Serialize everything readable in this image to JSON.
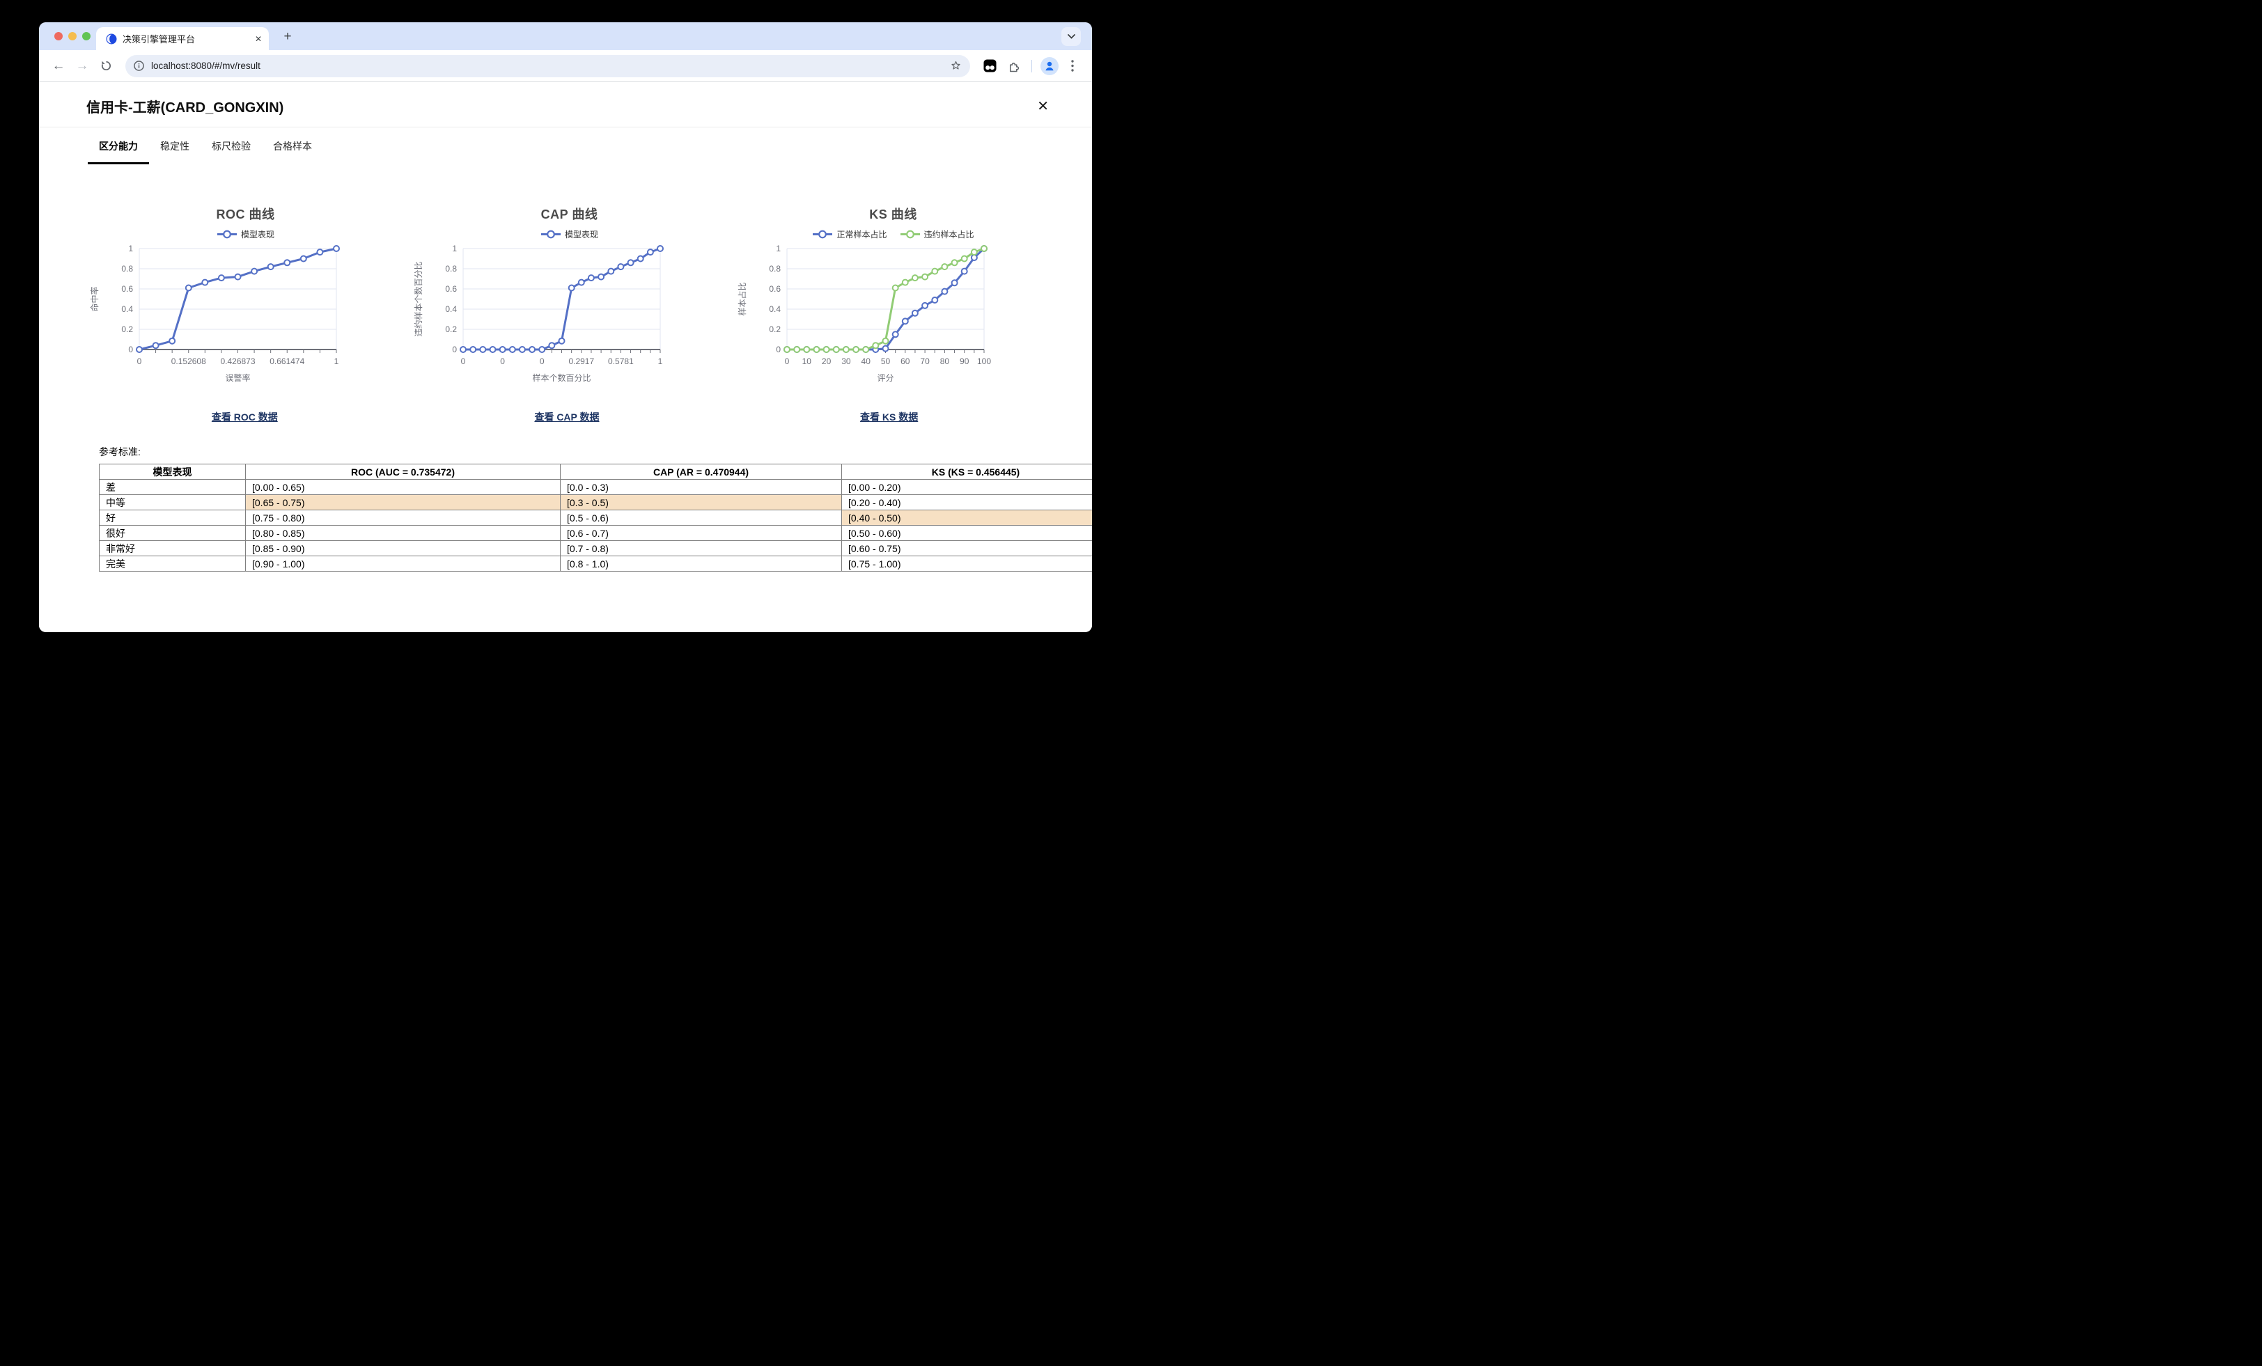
{
  "browser": {
    "tab_title": "决策引擎管理平台",
    "url": "localhost:8080/#/mv/result",
    "glyphs": {
      "tab_close": "✕",
      "new_tab": "+",
      "page_close": "✕"
    }
  },
  "page": {
    "title": "信用卡-工薪(CARD_GONGXIN)",
    "tabs": [
      {
        "label": "区分能力",
        "active": true
      },
      {
        "label": "稳定性",
        "active": false
      },
      {
        "label": "标尺检验",
        "active": false
      },
      {
        "label": "合格样本",
        "active": false
      }
    ],
    "links": [
      {
        "label": "查看 ROC 数据"
      },
      {
        "label": "查看 CAP 数据"
      },
      {
        "label": "查看 KS 数据"
      }
    ],
    "reference_label": "参考标准:"
  },
  "chart_data": [
    {
      "type": "line",
      "title": "ROC 曲线",
      "xlabel": "误警率",
      "ylabel": "命中率",
      "ylim": [
        0,
        1
      ],
      "y_ticks": [
        "0",
        "0.2",
        "0.4",
        "0.6",
        "0.8",
        "1"
      ],
      "grid": true,
      "legend_position": "top",
      "categories": [
        "0",
        "",
        "",
        "0.152608",
        "",
        "",
        "0.426873",
        "",
        "",
        "0.661474",
        "",
        "",
        "1"
      ],
      "series": [
        {
          "name": "模型表现",
          "color": "#5470C6",
          "values": [
            0,
            0.04,
            0.085,
            0.61,
            0.665,
            0.71,
            0.72,
            0.775,
            0.82,
            0.86,
            0.9,
            0.965,
            1
          ]
        }
      ]
    },
    {
      "type": "line",
      "title": "CAP 曲线",
      "xlabel": "样本个数百分比",
      "ylabel": "违约样本个数百分比",
      "ylim": [
        0,
        1
      ],
      "y_ticks": [
        "0",
        "0.2",
        "0.4",
        "0.6",
        "0.8",
        "1"
      ],
      "grid": true,
      "legend_position": "top",
      "categories": [
        "0",
        "",
        "",
        "",
        "0",
        "",
        "",
        "",
        "0",
        "",
        "",
        "",
        "0.2917",
        "",
        "",
        "",
        "0.5781",
        "",
        "",
        "",
        "1"
      ],
      "series": [
        {
          "name": "模型表现",
          "color": "#5470C6",
          "values": [
            0,
            0,
            0,
            0,
            0,
            0,
            0,
            0,
            0,
            0.04,
            0.085,
            0.61,
            0.665,
            0.71,
            0.72,
            0.775,
            0.82,
            0.86,
            0.9,
            0.965,
            1
          ]
        }
      ]
    },
    {
      "type": "line",
      "title": "KS 曲线",
      "xlabel": "评分",
      "ylabel": "样本占比",
      "ylim": [
        0,
        1
      ],
      "y_ticks": [
        "0",
        "0.2",
        "0.4",
        "0.6",
        "0.8",
        "1"
      ],
      "grid": true,
      "legend_position": "top",
      "categories": [
        "0",
        "",
        "10",
        "",
        "20",
        "",
        "30",
        "",
        "40",
        "",
        "50",
        "",
        "60",
        "",
        "70",
        "",
        "80",
        "",
        "90",
        "",
        "100"
      ],
      "series": [
        {
          "name": "正常样本占比",
          "color": "#5470C6",
          "values": [
            0,
            0,
            0,
            0,
            0,
            0,
            0,
            0,
            0,
            0,
            0.01,
            0.15,
            0.28,
            0.36,
            0.435,
            0.49,
            0.575,
            0.66,
            0.775,
            0.91,
            1
          ]
        },
        {
          "name": "违约样本占比",
          "color": "#91CC75",
          "values": [
            0,
            0,
            0,
            0,
            0,
            0,
            0,
            0,
            0,
            0.04,
            0.085,
            0.61,
            0.665,
            0.71,
            0.72,
            0.775,
            0.82,
            0.86,
            0.9,
            0.965,
            1
          ]
        }
      ]
    }
  ],
  "table": {
    "headers": [
      "模型表现",
      "ROC (AUC = 0.735472)",
      "CAP (AR = 0.470944)",
      "KS (KS = 0.456445)"
    ],
    "rows": [
      {
        "cells": [
          "差",
          "[0.00 - 0.65)",
          "[0.0 - 0.3)",
          "[0.00 - 0.20)"
        ],
        "highlight": []
      },
      {
        "cells": [
          "中等",
          "[0.65 - 0.75)",
          "[0.3 - 0.5)",
          "[0.20 - 0.40)"
        ],
        "highlight": [
          1,
          2
        ]
      },
      {
        "cells": [
          "好",
          "[0.75 - 0.80)",
          "[0.5 - 0.6)",
          "[0.40 - 0.50)"
        ],
        "highlight": [
          3
        ]
      },
      {
        "cells": [
          "很好",
          "[0.80 - 0.85)",
          "[0.6 - 0.7)",
          "[0.50 - 0.60)"
        ],
        "highlight": []
      },
      {
        "cells": [
          "非常好",
          "[0.85 - 0.90)",
          "[0.7 - 0.8)",
          "[0.60 - 0.75)"
        ],
        "highlight": []
      },
      {
        "cells": [
          "完美",
          "[0.90 - 1.00)",
          "[0.8 - 1.0)",
          "[0.75 - 1.00)"
        ],
        "highlight": []
      }
    ]
  },
  "colors": {
    "series_blue": "#5470C6",
    "series_green": "#91CC75",
    "highlight": "#F7E0C3",
    "link": "#1E3563",
    "axis_label": "#6E7079",
    "gridline": "#E0E6F1"
  }
}
